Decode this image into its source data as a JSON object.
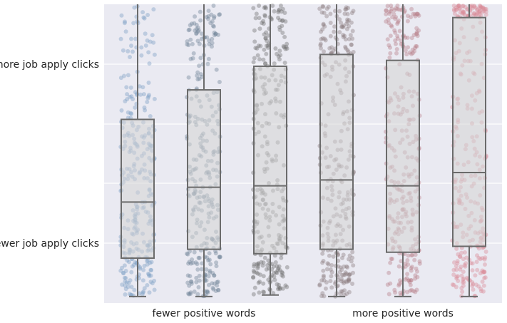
{
  "chart_data": {
    "type": "box",
    "y_tick_labels": {
      "top": "more job apply clicks",
      "bottom": "fewer job apply clicks"
    },
    "x_tick_labels": {
      "left": "fewer positive words",
      "right": "more positive words"
    },
    "y_range": [
      0,
      100
    ],
    "grid": true,
    "boxes": [
      {
        "color": "#7a9ec4",
        "whisker_low": 1,
        "q1": 14,
        "median": 33,
        "q3": 61,
        "whisker_high": 100
      },
      {
        "color": "#6f8297",
        "whisker_low": 1,
        "q1": 17,
        "median": 38,
        "q3": 71,
        "whisker_high": 100
      },
      {
        "color": "#6e6e6e",
        "whisker_low": 1.5,
        "q1": 15.5,
        "median": 38.5,
        "q3": 79,
        "whisker_high": 100
      },
      {
        "color": "#8a7a7e",
        "whisker_low": 1,
        "q1": 17,
        "median": 40.5,
        "q3": 83,
        "whisker_high": 100
      },
      {
        "color": "#b77c88",
        "whisker_low": 1,
        "q1": 16,
        "median": 38.5,
        "q3": 81,
        "whisker_high": 100
      },
      {
        "color": "#d98a96",
        "whisker_low": 1,
        "q1": 18,
        "median": 43,
        "q3": 95.5,
        "whisker_high": 100
      }
    ]
  }
}
